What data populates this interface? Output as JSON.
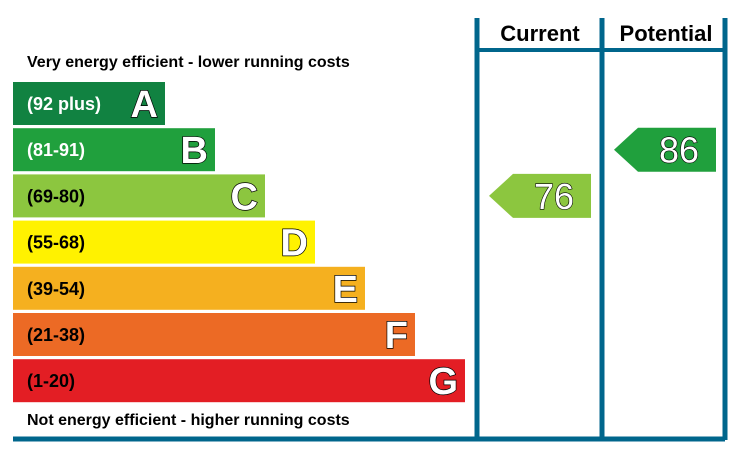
{
  "chart_data": {
    "type": "bar",
    "top_caption": "Very energy efficient - lower running costs",
    "bottom_caption": "Not energy efficient - higher running costs",
    "columns": {
      "current": "Current",
      "potential": "Potential"
    },
    "bands": [
      {
        "range": "(92 plus)",
        "letter": "A",
        "color": "#118241",
        "text_color": "#ffffff"
      },
      {
        "range": "(81-91)",
        "letter": "B",
        "color": "#20A03D",
        "text_color": "#ffffff"
      },
      {
        "range": "(69-80)",
        "letter": "C",
        "color": "#8CC63F",
        "text_color": "#000000"
      },
      {
        "range": "(55-68)",
        "letter": "D",
        "color": "#FFF200",
        "text_color": "#000000"
      },
      {
        "range": "(39-54)",
        "letter": "E",
        "color": "#F5B01F",
        "text_color": "#000000"
      },
      {
        "range": "(21-38)",
        "letter": "F",
        "color": "#EC6A25",
        "text_color": "#000000"
      },
      {
        "range": "(1-20)",
        "letter": "G",
        "color": "#E31E24",
        "text_color": "#000000"
      }
    ],
    "ratings": [
      {
        "column": "current",
        "value": 76,
        "band": "C",
        "color": "#8CC63F"
      },
      {
        "column": "potential",
        "value": 86,
        "band": "B",
        "color": "#20A03D"
      }
    ],
    "frame_color": "#00668C"
  }
}
